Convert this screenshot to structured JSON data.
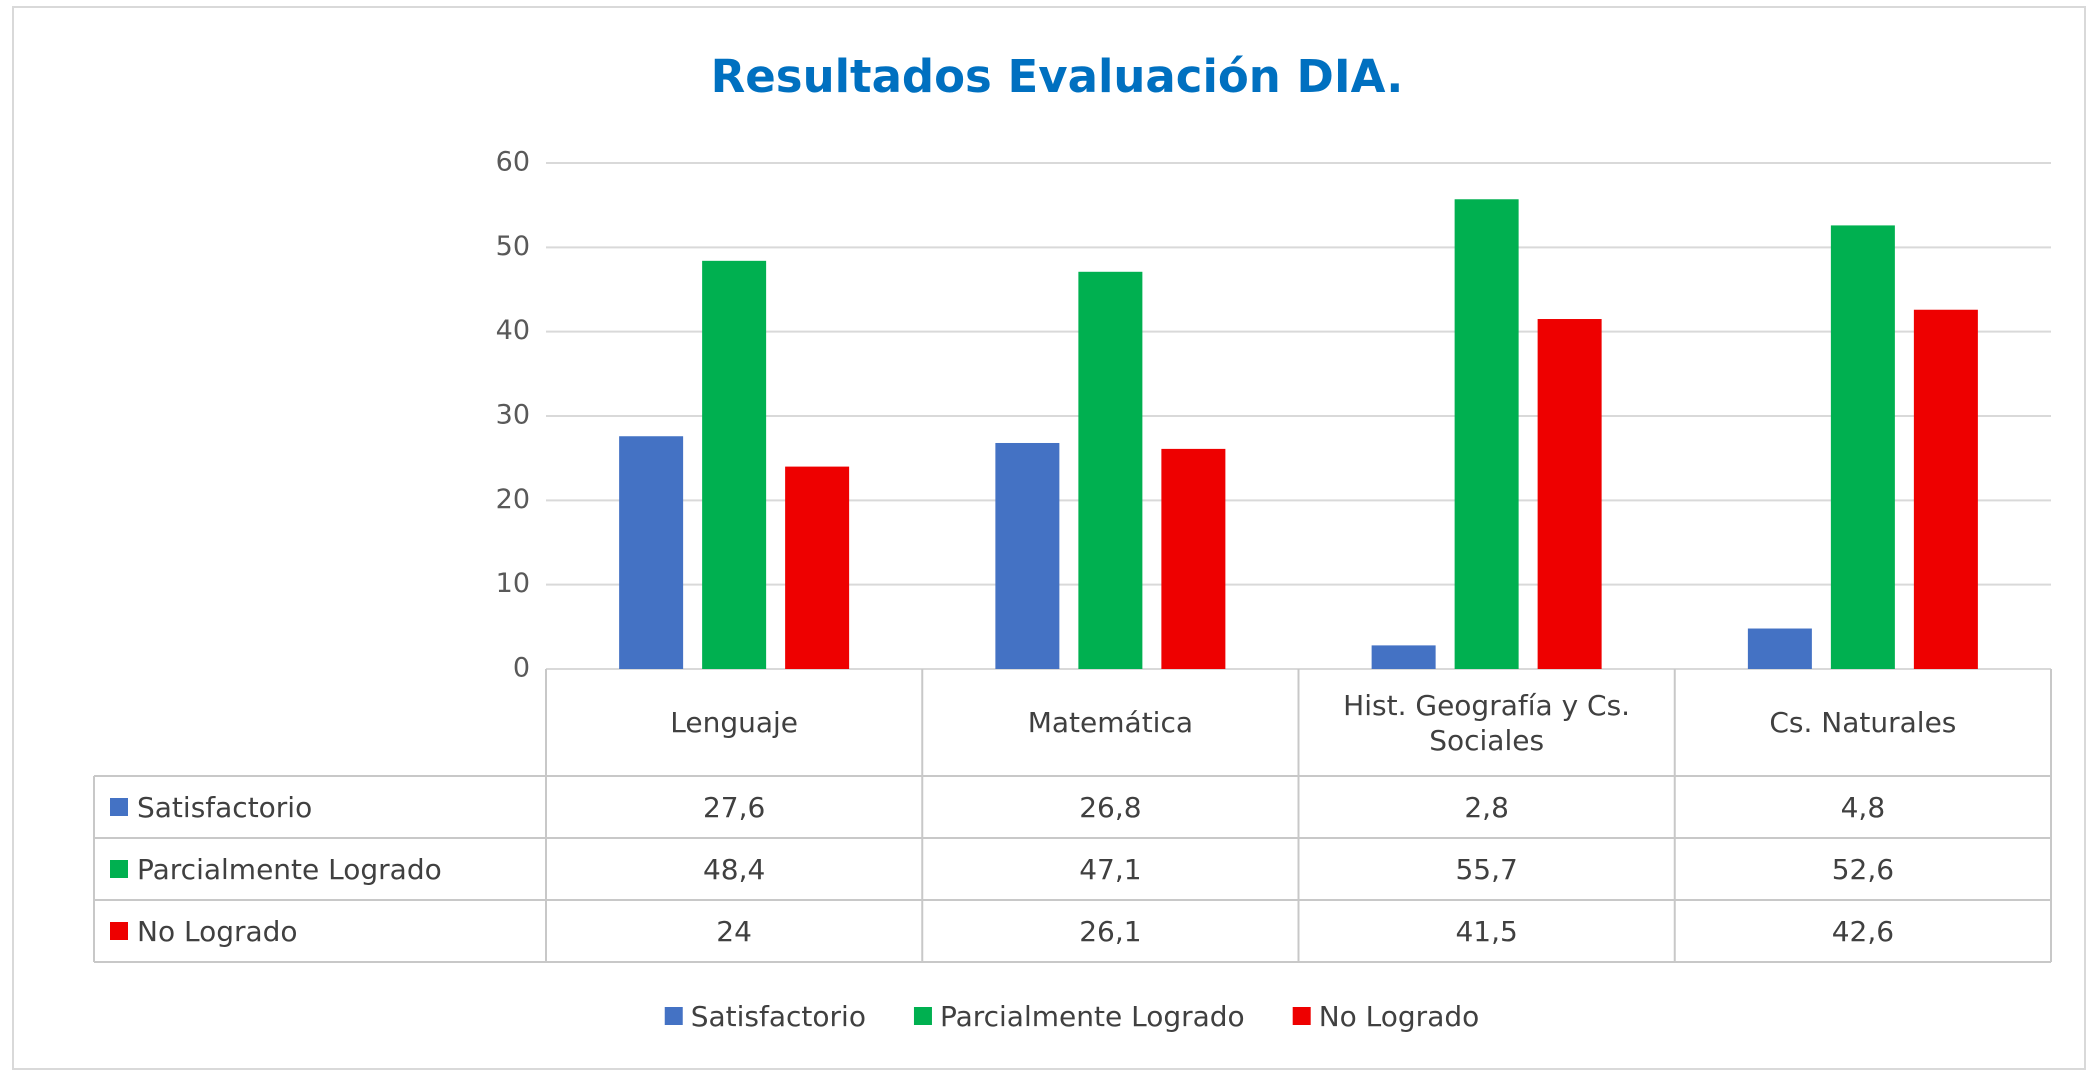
{
  "chart_data": {
    "type": "bar",
    "title": "Resultados Evaluación DIA.",
    "categories": [
      "Lenguaje",
      "Matemática",
      "Hist. Geografía y Cs. Sociales",
      "Cs. Naturales"
    ],
    "series": [
      {
        "name": "Satisfactorio",
        "color": "#4472c4",
        "values": [
          27.6,
          26.8,
          2.8,
          4.8
        ],
        "value_labels": [
          "27,6",
          "26,8",
          "2,8",
          "4,8"
        ]
      },
      {
        "name": "Parcialmente Logrado",
        "color": "#00b050",
        "values": [
          48.4,
          47.1,
          55.7,
          52.6
        ],
        "value_labels": [
          "48,4",
          "47,1",
          "55,7",
          "52,6"
        ]
      },
      {
        "name": "No Logrado",
        "color": "#ee0000",
        "values": [
          24,
          26.1,
          41.5,
          42.6
        ],
        "value_labels": [
          "24",
          "26,1",
          "41,5",
          "42,6"
        ]
      }
    ],
    "ylim": [
      0,
      60
    ],
    "yticks": [
      0,
      10,
      20,
      30,
      40,
      50,
      60
    ],
    "grid": true,
    "legend": "bottom"
  }
}
